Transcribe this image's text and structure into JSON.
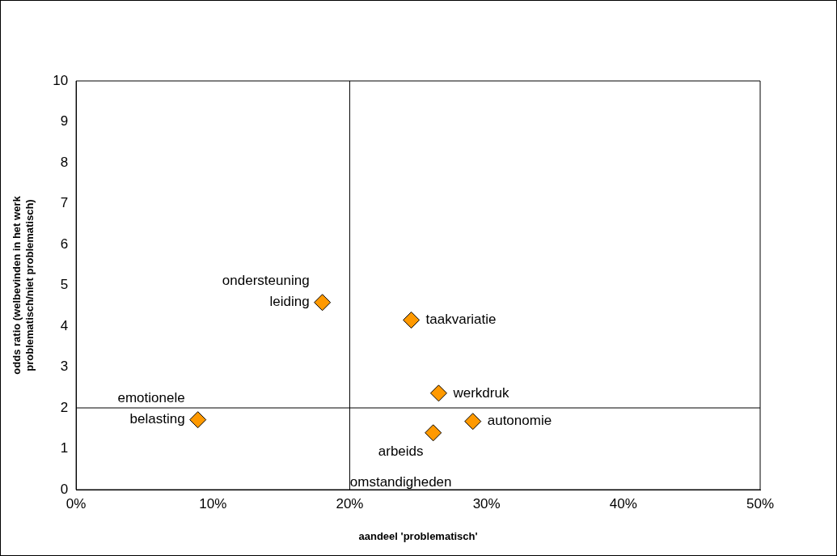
{
  "chart_data": {
    "type": "scatter",
    "xlabel": "aandeel 'problematisch'",
    "ylabel": "odds ratio (welbevinden in het werk\nproblematisch/niet problematisch)",
    "x": [
      8.9,
      18.0,
      24.5,
      26.5,
      29.0,
      26.1
    ],
    "series": [
      {
        "color": "#ff9900",
        "values": [
          1.71,
          4.58,
          4.15,
          2.36,
          1.67,
          1.39
        ]
      }
    ],
    "marker": "diamond",
    "grid": false,
    "legend": false,
    "xlim": [
      0,
      50
    ],
    "xticks": [
      {
        "value": 0,
        "label": "0%"
      },
      {
        "value": 10,
        "label": "10%"
      },
      {
        "value": 20,
        "label": "20%"
      },
      {
        "value": 30,
        "label": "30%"
      },
      {
        "value": 40,
        "label": "40%"
      },
      {
        "value": 50,
        "label": "50%"
      }
    ],
    "ylim": [
      0,
      10
    ],
    "yticks": [
      0,
      1,
      2,
      3,
      4,
      5,
      6,
      7,
      8,
      9,
      10
    ],
    "ref_lines": [
      {
        "axis": "x",
        "value": 20,
        "color": "#000000"
      },
      {
        "axis": "y",
        "value": 2,
        "color": "#000000"
      }
    ],
    "annotations": [
      {
        "text": "emotionele\nbelasting",
        "x": 8.9,
        "y": 1.71
      },
      {
        "text": "ondersteuning\nleiding",
        "x": 18.0,
        "y": 4.58
      },
      {
        "text": "taakvariatie",
        "x": 24.5,
        "y": 4.15
      },
      {
        "text": "werkdruk",
        "x": 26.5,
        "y": 2.36
      },
      {
        "text": "autonomie",
        "x": 29.0,
        "y": 1.67
      },
      {
        "text": "arbeids\nomstandigheden",
        "x": 26.1,
        "y": 1.39
      }
    ]
  }
}
